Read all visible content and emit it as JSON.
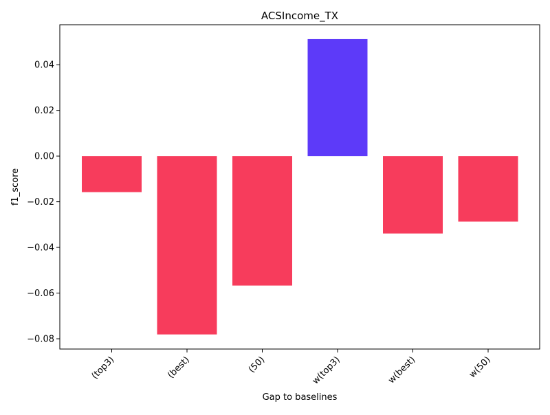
{
  "chart_data": {
    "type": "bar",
    "title": "ACSIncome_TX",
    "xlabel": "Gap to baselines",
    "ylabel": "f1_score",
    "categories": [
      "(top3)",
      "(best)",
      "(50)",
      "w(top3)",
      "w(best)",
      "w(50)"
    ],
    "values": [
      -0.0158,
      -0.0781,
      -0.0567,
      0.0512,
      -0.0339,
      -0.0287
    ],
    "ylim": [
      -0.0845,
      0.0575
    ],
    "yticks": [
      0.04,
      0.02,
      0.0,
      -0.02,
      -0.04,
      -0.06,
      -0.08
    ],
    "ytick_labels": [
      "0.04",
      "0.02",
      "0.00",
      "−0.02",
      "−0.04",
      "−0.06",
      "−0.08"
    ],
    "grid": false,
    "legend": "none",
    "colors": {
      "negative": "#f73c5c",
      "positive": "#5d3af9",
      "axis": "#000000"
    }
  }
}
